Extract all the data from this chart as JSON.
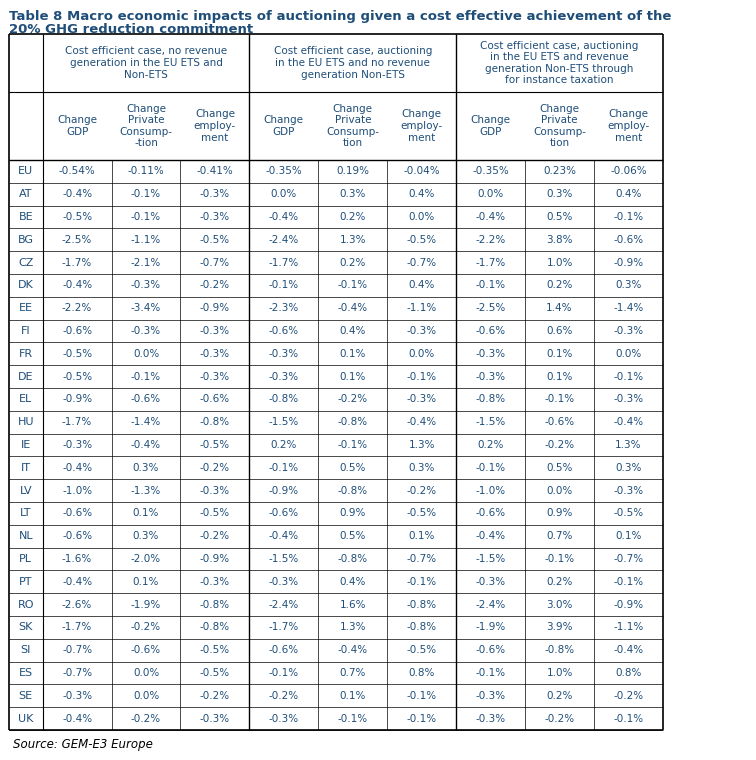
{
  "title": "Table 8 Macro economic impacts of auctioning given a cost effective achievement of the\n20% GHG reduction commitment",
  "source": "Source: GEM-E3 Europe",
  "text_color": "#1F4E79",
  "col_groups": [
    "Cost efficient case, no revenue\ngeneration in the EU ETS and\nNon-ETS",
    "Cost efficient case, auctioning\nin the EU ETS and no revenue\ngeneration Non-ETS",
    "Cost efficient case, auctioning\nin the EU ETS and revenue\ngeneration Non-ETS through\nfor instance taxation"
  ],
  "sub_headers": [
    "Change\nGDP",
    "Change\nPrivate\nConsump-\n-tion",
    "Change\nemploy-\nment",
    "Change\nGDP",
    "Change\nPrivate\nConsump-\ntion",
    "Change\nemploy-\nment",
    "Change\nGDP",
    "Change\nPrivate\nConsump-\ntion",
    "Change\nemploy-\nment"
  ],
  "rows": [
    [
      "EU",
      "-0.54%",
      "-0.11%",
      "-0.41%",
      "-0.35%",
      "0.19%",
      "-0.04%",
      "-0.35%",
      "0.23%",
      "-0.06%"
    ],
    [
      "AT",
      "-0.4%",
      "-0.1%",
      "-0.3%",
      "0.0%",
      "0.3%",
      "0.4%",
      "0.0%",
      "0.3%",
      "0.4%"
    ],
    [
      "BE",
      "-0.5%",
      "-0.1%",
      "-0.3%",
      "-0.4%",
      "0.2%",
      "0.0%",
      "-0.4%",
      "0.5%",
      "-0.1%"
    ],
    [
      "BG",
      "-2.5%",
      "-1.1%",
      "-0.5%",
      "-2.4%",
      "1.3%",
      "-0.5%",
      "-2.2%",
      "3.8%",
      "-0.6%"
    ],
    [
      "CZ",
      "-1.7%",
      "-2.1%",
      "-0.7%",
      "-1.7%",
      "0.2%",
      "-0.7%",
      "-1.7%",
      "1.0%",
      "-0.9%"
    ],
    [
      "DK",
      "-0.4%",
      "-0.3%",
      "-0.2%",
      "-0.1%",
      "-0.1%",
      "0.4%",
      "-0.1%",
      "0.2%",
      "0.3%"
    ],
    [
      "EE",
      "-2.2%",
      "-3.4%",
      "-0.9%",
      "-2.3%",
      "-0.4%",
      "-1.1%",
      "-2.5%",
      "1.4%",
      "-1.4%"
    ],
    [
      "FI",
      "-0.6%",
      "-0.3%",
      "-0.3%",
      "-0.6%",
      "0.4%",
      "-0.3%",
      "-0.6%",
      "0.6%",
      "-0.3%"
    ],
    [
      "FR",
      "-0.5%",
      "0.0%",
      "-0.3%",
      "-0.3%",
      "0.1%",
      "0.0%",
      "-0.3%",
      "0.1%",
      "0.0%"
    ],
    [
      "DE",
      "-0.5%",
      "-0.1%",
      "-0.3%",
      "-0.3%",
      "0.1%",
      "-0.1%",
      "-0.3%",
      "0.1%",
      "-0.1%"
    ],
    [
      "EL",
      "-0.9%",
      "-0.6%",
      "-0.6%",
      "-0.8%",
      "-0.2%",
      "-0.3%",
      "-0.8%",
      "-0.1%",
      "-0.3%"
    ],
    [
      "HU",
      "-1.7%",
      "-1.4%",
      "-0.8%",
      "-1.5%",
      "-0.8%",
      "-0.4%",
      "-1.5%",
      "-0.6%",
      "-0.4%"
    ],
    [
      "IE",
      "-0.3%",
      "-0.4%",
      "-0.5%",
      "0.2%",
      "-0.1%",
      "1.3%",
      "0.2%",
      "-0.2%",
      "1.3%"
    ],
    [
      "IT",
      "-0.4%",
      "0.3%",
      "-0.2%",
      "-0.1%",
      "0.5%",
      "0.3%",
      "-0.1%",
      "0.5%",
      "0.3%"
    ],
    [
      "LV",
      "-1.0%",
      "-1.3%",
      "-0.3%",
      "-0.9%",
      "-0.8%",
      "-0.2%",
      "-1.0%",
      "0.0%",
      "-0.3%"
    ],
    [
      "LT",
      "-0.6%",
      "0.1%",
      "-0.5%",
      "-0.6%",
      "0.9%",
      "-0.5%",
      "-0.6%",
      "0.9%",
      "-0.5%"
    ],
    [
      "NL",
      "-0.6%",
      "0.3%",
      "-0.2%",
      "-0.4%",
      "0.5%",
      "0.1%",
      "-0.4%",
      "0.7%",
      "0.1%"
    ],
    [
      "PL",
      "-1.6%",
      "-2.0%",
      "-0.9%",
      "-1.5%",
      "-0.8%",
      "-0.7%",
      "-1.5%",
      "-0.1%",
      "-0.7%"
    ],
    [
      "PT",
      "-0.4%",
      "0.1%",
      "-0.3%",
      "-0.3%",
      "0.4%",
      "-0.1%",
      "-0.3%",
      "0.2%",
      "-0.1%"
    ],
    [
      "RO",
      "-2.6%",
      "-1.9%",
      "-0.8%",
      "-2.4%",
      "1.6%",
      "-0.8%",
      "-2.4%",
      "3.0%",
      "-0.9%"
    ],
    [
      "SK",
      "-1.7%",
      "-0.2%",
      "-0.8%",
      "-1.7%",
      "1.3%",
      "-0.8%",
      "-1.9%",
      "3.9%",
      "-1.1%"
    ],
    [
      "SI",
      "-0.7%",
      "-0.6%",
      "-0.5%",
      "-0.6%",
      "-0.4%",
      "-0.5%",
      "-0.6%",
      "-0.8%",
      "-0.4%"
    ],
    [
      "ES",
      "-0.7%",
      "0.0%",
      "-0.5%",
      "-0.1%",
      "0.7%",
      "0.8%",
      "-0.1%",
      "1.0%",
      "0.8%"
    ],
    [
      "SE",
      "-0.3%",
      "0.0%",
      "-0.2%",
      "-0.2%",
      "0.1%",
      "-0.1%",
      "-0.3%",
      "0.2%",
      "-0.2%"
    ],
    [
      "UK",
      "-0.4%",
      "-0.2%",
      "-0.3%",
      "-0.3%",
      "-0.1%",
      "-0.1%",
      "-0.3%",
      "-0.2%",
      "-0.1%"
    ]
  ]
}
